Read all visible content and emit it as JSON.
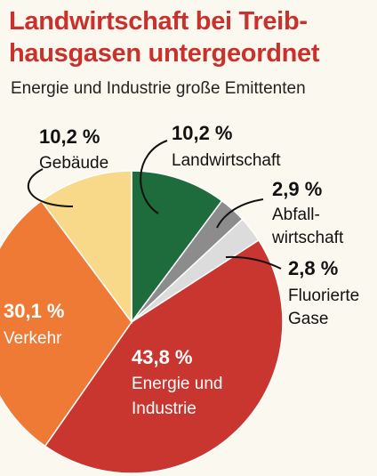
{
  "header": {
    "title_line1": "Landwirtschaft bei Treib-",
    "title_line2": "hausgasen untergeordnet",
    "subtitle": "Energie und Industrie große Emittenten"
  },
  "chart_data": {
    "type": "pie",
    "title": "Landwirtschaft bei Treibhausgasen untergeordnet",
    "subtitle": "Energie und Industrie große Emittenten",
    "unit": "%",
    "slices": [
      {
        "label": "Landwirtschaft",
        "value": 10.2,
        "value_label": "10,2 %",
        "color": "#1e6b3c"
      },
      {
        "label": "Abfallwirtschaft",
        "value": 2.9,
        "value_label": "2,9 %",
        "color": "#8c8c8c"
      },
      {
        "label": "Fluorierte Gase",
        "value": 2.8,
        "value_label": "2,8 %",
        "color": "#dcdcdc"
      },
      {
        "label": "Energie und Industrie",
        "value": 43.8,
        "value_label": "43,8 %",
        "color": "#c9362f"
      },
      {
        "label": "Verkehr",
        "value": 30.1,
        "value_label": "30,1 %",
        "color": "#ee7a35"
      },
      {
        "label": "Gebäude",
        "value": 10.2,
        "value_label": "10,2 %",
        "color": "#f8d98a"
      }
    ]
  },
  "labels": {
    "landwirtschaft": {
      "pct": "10,2 %",
      "line1": "Landwirtschaft"
    },
    "gebaeude": {
      "pct": "10,2 %",
      "line1": "Gebäude"
    },
    "abfall": {
      "pct": "2,9 %",
      "line1": "Abfall-",
      "line2": "wirtschaft"
    },
    "fluoriert": {
      "pct": "2,8 %",
      "line1": "Fluorierte",
      "line2": "Gase"
    },
    "verkehr": {
      "pct": "30,1 %",
      "line1": "Verkehr"
    },
    "energie": {
      "pct": "43,8 %",
      "line1": "Energie und",
      "line2": "Industrie"
    }
  }
}
